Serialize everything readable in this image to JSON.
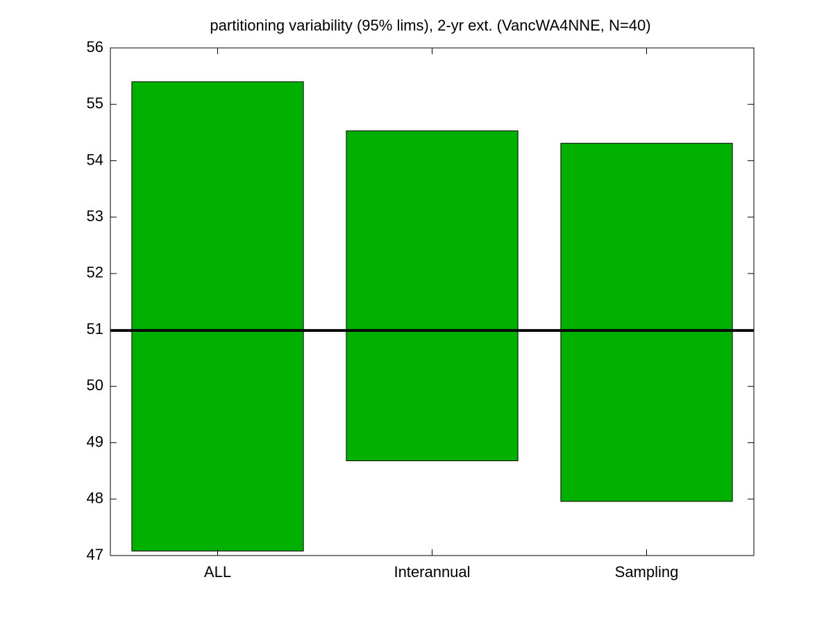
{
  "chart_data": {
    "type": "floating-bar",
    "title": "partitioning variability (95% lims), 2-yr ext. (VancWA4NNE, N=40)",
    "categories": [
      "ALL",
      "Interannual",
      "Sampling"
    ],
    "low": [
      47.08,
      48.68,
      47.96
    ],
    "high": [
      55.4,
      54.53,
      54.31
    ],
    "color": "#00b000",
    "reference_line": 50.99,
    "ylim": [
      47,
      56
    ],
    "yticks": [
      47,
      48,
      49,
      50,
      51,
      52,
      53,
      54,
      55,
      56
    ]
  }
}
